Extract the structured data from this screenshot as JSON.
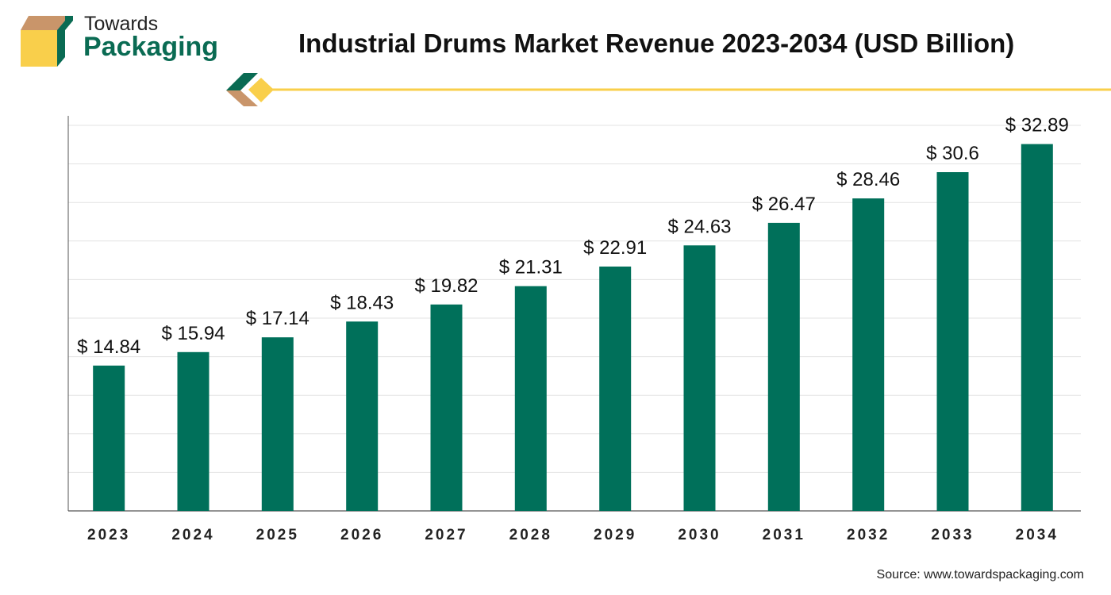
{
  "brand": {
    "top": "Towards",
    "bottom": "Packaging"
  },
  "colors": {
    "bar": "#00705a",
    "accent_yellow": "#f9cf4b",
    "accent_tan": "#c9956a",
    "grid": "#e3e3e3",
    "axis": "#555555"
  },
  "source": "Source: www.towardspackaging.com",
  "chart_data": {
    "type": "bar",
    "title": "Industrial Drums Market Revenue 2023-2034 (USD Billion)",
    "xlabel": "",
    "ylabel": "",
    "categories": [
      "2023",
      "2024",
      "2025",
      "2026",
      "2027",
      "2028",
      "2029",
      "2030",
      "2031",
      "2032",
      "2033",
      "2034"
    ],
    "values": [
      14.84,
      15.94,
      17.14,
      18.43,
      19.82,
      21.31,
      22.91,
      24.63,
      26.47,
      28.46,
      30.6,
      32.89
    ],
    "value_labels": [
      "$ 14.84",
      "$ 15.94",
      "$ 17.14",
      "$ 18.43",
      "$ 19.82",
      "$ 21.31",
      "$ 22.91",
      "$ 24.63",
      "$ 26.47",
      "$ 28.46",
      "$ 30.6",
      "$ 32.89"
    ],
    "ylim": [
      3,
      34.8
    ],
    "grid": true,
    "y_tick_labels_shown": false
  }
}
